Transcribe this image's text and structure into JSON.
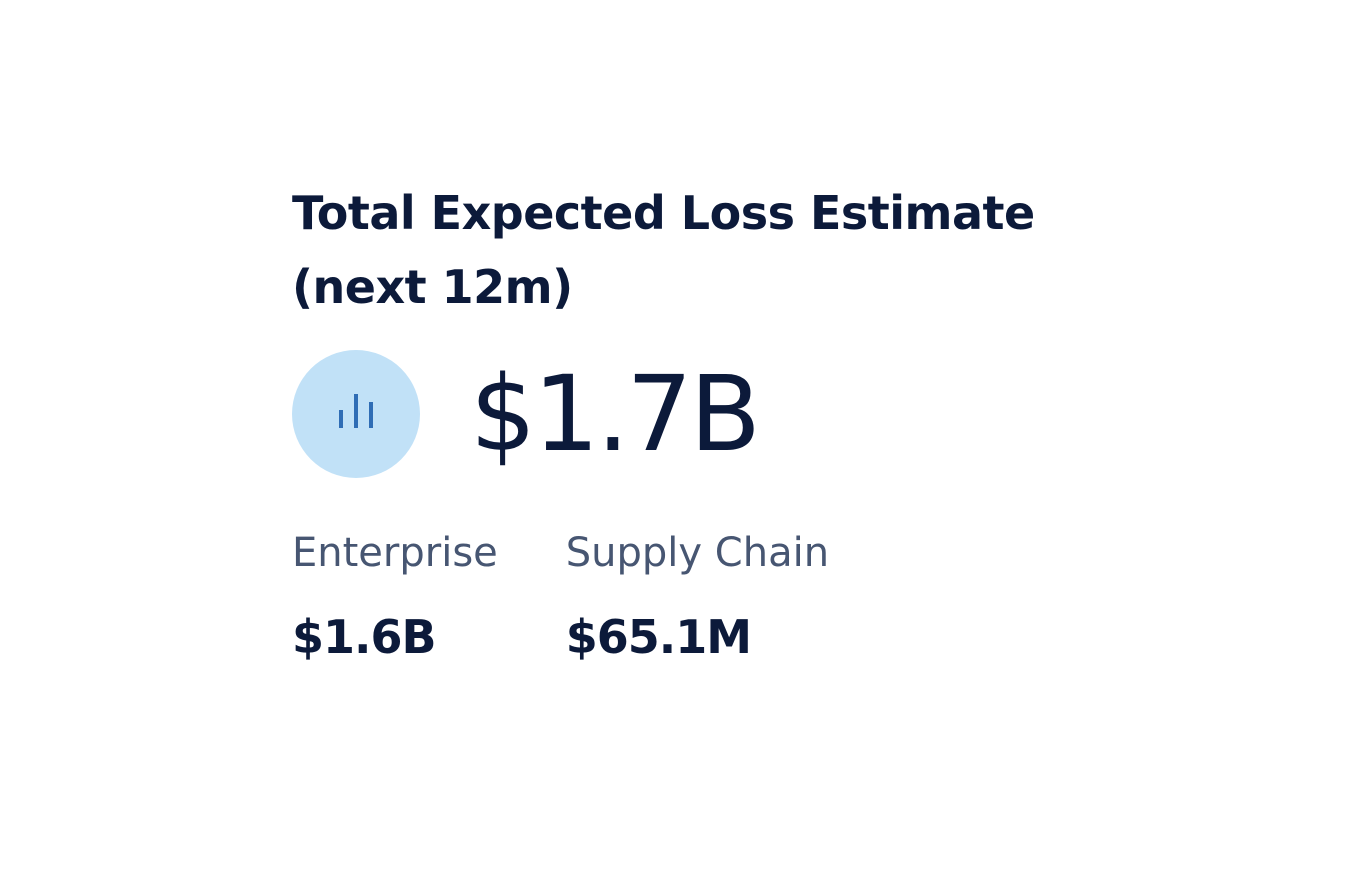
{
  "card": {
    "title": "Total Expected Loss Estimate (next 12m)",
    "total": "$1.7B",
    "breakdown": [
      {
        "label": "Enterprise",
        "value": "$1.6B"
      },
      {
        "label": "Supply Chain",
        "value": "$65.1M"
      }
    ]
  }
}
